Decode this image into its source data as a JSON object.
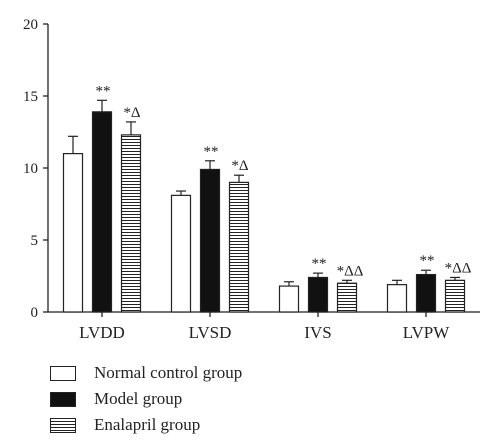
{
  "chart_data": {
    "type": "bar",
    "categories": [
      "LVDD",
      "LVSD",
      "IVS",
      "LVPW"
    ],
    "ylim": [
      0,
      20
    ],
    "yticks": [
      0,
      5,
      10,
      15,
      20
    ],
    "series": [
      {
        "name": "Normal control group",
        "values": [
          11.0,
          8.1,
          1.8,
          1.9
        ],
        "errors": [
          1.2,
          0.3,
          0.3,
          0.3
        ],
        "style": "white",
        "annotations": [
          "",
          "",
          "",
          ""
        ]
      },
      {
        "name": "Model group",
        "values": [
          13.9,
          9.9,
          2.4,
          2.6
        ],
        "errors": [
          0.8,
          0.6,
          0.3,
          0.3
        ],
        "style": "black",
        "annotations": [
          "**",
          "**",
          "**",
          "**"
        ]
      },
      {
        "name": "Enalapril group",
        "values": [
          12.3,
          9.0,
          2.0,
          2.2
        ],
        "errors": [
          0.9,
          0.5,
          0.2,
          0.2
        ],
        "style": "hatch",
        "annotations": [
          "*Δ",
          "*Δ",
          "*ΔΔ",
          "*ΔΔ"
        ]
      }
    ],
    "colors": {
      "white": "#ffffff",
      "black": "#111111",
      "outline": "#222222"
    }
  }
}
